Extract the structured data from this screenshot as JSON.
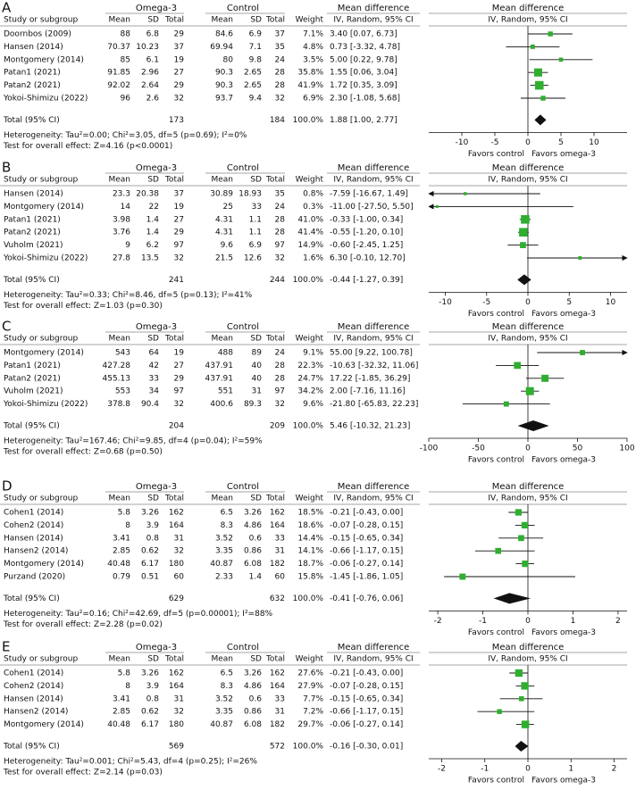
{
  "chart_data": [
    {
      "type": "forest",
      "label": "A",
      "groups": [
        "Omega-3",
        "Control",
        "Mean difference",
        "Mean difference"
      ],
      "columns": [
        "Study or subgroup",
        "Mean",
        "SD",
        "Total",
        "Mean",
        "SD",
        "Total",
        "Weight",
        "IV, Random, 95% CI",
        "IV, Random, 95% CI"
      ],
      "rows": [
        {
          "study": "Doornbos (2009)",
          "omega3": [
            88,
            6.8,
            29
          ],
          "control": [
            84.6,
            6.9,
            37
          ],
          "weight": 7.1,
          "weight_label": "7.1%",
          "md": 3.4,
          "ci": [
            0.07,
            6.73
          ],
          "md_label": "3.40 [0.07, 6.73]"
        },
        {
          "study": "Hansen (2014)",
          "omega3": [
            70.37,
            10.23,
            37
          ],
          "control": [
            69.94,
            7.1,
            35
          ],
          "weight": 4.8,
          "weight_label": "4.8%",
          "md": 0.73,
          "ci": [
            -3.32,
            4.78
          ],
          "md_label": "0.73 [-3.32, 4.78]"
        },
        {
          "study": "Montgomery (2014)",
          "omega3": [
            85,
            6.1,
            19
          ],
          "control": [
            80,
            9.8,
            24
          ],
          "weight": 3.5,
          "weight_label": "3.5%",
          "md": 5.0,
          "ci": [
            0.22,
            9.78
          ],
          "md_label": "5.00 [0.22, 9.78]"
        },
        {
          "study": "Patan1 (2021)",
          "omega3": [
            91.85,
            2.96,
            27
          ],
          "control": [
            90.3,
            2.65,
            28
          ],
          "weight": 35.8,
          "weight_label": "35.8%",
          "md": 1.55,
          "ci": [
            0.06,
            3.04
          ],
          "md_label": "1.55 [0.06, 3.04]"
        },
        {
          "study": "Patan2 (2021)",
          "omega3": [
            92.02,
            2.64,
            29
          ],
          "control": [
            90.3,
            2.65,
            28
          ],
          "weight": 41.9,
          "weight_label": "41.9%",
          "md": 1.72,
          "ci": [
            0.35,
            3.09
          ],
          "md_label": "1.72 [0.35, 3.09]"
        },
        {
          "study": "Yokoi-Shimizu (2022)",
          "omega3": [
            96,
            2.6,
            32
          ],
          "control": [
            93.7,
            9.4,
            32
          ],
          "weight": 6.9,
          "weight_label": "6.9%",
          "md": 2.3,
          "ci": [
            -1.08,
            5.68
          ],
          "md_label": "2.30 [-1.08, 5.68]"
        }
      ],
      "total": {
        "label": "Total (95% CI)",
        "omega3_total": 173,
        "control_total": 184,
        "weight_label": "100.0%",
        "md": 1.88,
        "ci": [
          1.0,
          2.77
        ],
        "md_label": "1.88 [1.00, 2.77]"
      },
      "heterogeneity": "Heterogeneity: Tau²=0.00; Chi²=3.05, df=5 (p=0.69); I²=0%",
      "overall_test": "Test for overall effect: Z=4.16 (p<0.0001)",
      "xlim": [
        -15,
        15
      ],
      "xticks": [
        -10,
        -5,
        0,
        5,
        10
      ],
      "favors": [
        "Favors control",
        "Favors omega-3"
      ],
      "color": "#2fae2f"
    },
    {
      "type": "forest",
      "label": "B",
      "groups": [
        "Omega-3",
        "Control",
        "Mean difference",
        "Mean difference"
      ],
      "columns": [
        "Study or subgroup",
        "Mean",
        "SD",
        "Total",
        "Mean",
        "SD",
        "Total",
        "Weight",
        "IV, Random, 95% CI",
        "IV, Random, 95% CI"
      ],
      "rows": [
        {
          "study": "Hansen (2014)",
          "omega3": [
            23.3,
            20.38,
            37
          ],
          "control": [
            30.89,
            18.93,
            35
          ],
          "weight": 0.8,
          "weight_label": "0.8%",
          "md": -7.59,
          "ci": [
            -16.67,
            1.49
          ],
          "md_label": "-7.59 [-16.67, 1.49]"
        },
        {
          "study": "Montgomery (2014)",
          "omega3": [
            14,
            22,
            19
          ],
          "control": [
            25,
            33,
            24
          ],
          "weight": 0.3,
          "weight_label": "0.3%",
          "md": -11.0,
          "ci": [
            -27.5,
            5.5
          ],
          "md_label": "-11.00 [-27.50, 5.50]"
        },
        {
          "study": "Patan1 (2021)",
          "omega3": [
            3.98,
            1.4,
            27
          ],
          "control": [
            4.31,
            1.1,
            28
          ],
          "weight": 41.0,
          "weight_label": "41.0%",
          "md": -0.33,
          "ci": [
            -1.0,
            0.34
          ],
          "md_label": "-0.33 [-1.00, 0.34]"
        },
        {
          "study": "Patan2 (2021)",
          "omega3": [
            3.76,
            1.4,
            29
          ],
          "control": [
            4.31,
            1.1,
            28
          ],
          "weight": 41.4,
          "weight_label": "41.4%",
          "md": -0.55,
          "ci": [
            -1.2,
            0.1
          ],
          "md_label": "-0.55 [-1.20, 0.10]"
        },
        {
          "study": "Vuholm (2021)",
          "omega3": [
            9,
            6.2,
            97
          ],
          "control": [
            9.6,
            6.9,
            97
          ],
          "weight": 14.9,
          "weight_label": "14.9%",
          "md": -0.6,
          "ci": [
            -2.45,
            1.25
          ],
          "md_label": "-0.60 [-2.45, 1.25]"
        },
        {
          "study": "Yokoi-Shimizu (2022)",
          "omega3": [
            27.8,
            13.5,
            32
          ],
          "control": [
            21.5,
            12.6,
            32
          ],
          "weight": 1.6,
          "weight_label": "1.6%",
          "md": 6.3,
          "ci": [
            -0.1,
            12.7
          ],
          "md_label": "6.30 [-0.10, 12.70]"
        }
      ],
      "total": {
        "label": "Total (95% CI)",
        "omega3_total": 241,
        "control_total": 244,
        "weight_label": "100.0%",
        "md": -0.44,
        "ci": [
          -1.27,
          0.39
        ],
        "md_label": "-0.44 [-1.27, 0.39]"
      },
      "heterogeneity": "Heterogeneity: Tau²=0.33; Chi²=8.46, df=5 (p=0.13); I²=41%",
      "overall_test": "Test for overall effect: Z=1.03 (p=0.30)",
      "xlim": [
        -12,
        12
      ],
      "xticks": [
        -10,
        -5,
        0,
        5,
        10
      ],
      "favors": [
        "Favors control",
        "Favors omega-3"
      ],
      "color": "#2fae2f"
    },
    {
      "type": "forest",
      "label": "C",
      "groups": [
        "Omega-3",
        "Control",
        "Mean difference",
        "Mean difference"
      ],
      "columns": [
        "Study or subgroup",
        "Mean",
        "SD",
        "Total",
        "Mean",
        "SD",
        "Total",
        "Weight",
        "IV, Random, 95% CI",
        "IV, Random, 95% CI"
      ],
      "rows": [
        {
          "study": "Montgomery (2014)",
          "omega3": [
            543,
            64,
            19
          ],
          "control": [
            488,
            89,
            24
          ],
          "weight": 9.1,
          "weight_label": "9.1%",
          "md": 55.0,
          "ci": [
            9.22,
            100.78
          ],
          "md_label": "55.00 [9.22, 100.78]"
        },
        {
          "study": "Patan1 (2021)",
          "omega3": [
            427.28,
            42,
            27
          ],
          "control": [
            437.91,
            40,
            28
          ],
          "weight": 22.3,
          "weight_label": "22.3%",
          "md": -10.63,
          "ci": [
            -32.32,
            11.06
          ],
          "md_label": "-10.63 [-32.32, 11.06]"
        },
        {
          "study": "Patan2 (2021)",
          "omega3": [
            455.13,
            33,
            29
          ],
          "control": [
            437.91,
            40,
            28
          ],
          "weight": 24.7,
          "weight_label": "24.7%",
          "md": 17.22,
          "ci": [
            -1.85,
            36.29
          ],
          "md_label": "17.22 [-1.85, 36.29]"
        },
        {
          "study": "Vuholm (2021)",
          "omega3": [
            553,
            34,
            97
          ],
          "control": [
            551,
            31,
            97
          ],
          "weight": 34.2,
          "weight_label": "34.2%",
          "md": 2.0,
          "ci": [
            -7.16,
            11.16
          ],
          "md_label": "2.00 [-7.16, 11.16]"
        },
        {
          "study": "Yokoi-Shimizu (2022)",
          "omega3": [
            378.8,
            90.4,
            32
          ],
          "control": [
            400.6,
            89.3,
            32
          ],
          "weight": 9.6,
          "weight_label": "9.6%",
          "md": -21.8,
          "ci": [
            -65.83,
            22.23
          ],
          "md_label": "-21.80 [-65.83, 22.23]"
        }
      ],
      "total": {
        "label": "Total (95% CI)",
        "omega3_total": 204,
        "control_total": 209,
        "weight_label": "100.0%",
        "md": 5.46,
        "ci": [
          -10.32,
          21.23
        ],
        "md_label": "5.46 [-10.32, 21.23]"
      },
      "heterogeneity": "Heterogeneity: Tau²=167.46; Chi²=9.85, df=4 (p=0.04); I²=59%",
      "overall_test": "Test for overall effect: Z=0.68 (p=0.50)",
      "xlim": [
        -100,
        100
      ],
      "xticks": [
        -100,
        -50,
        0,
        50,
        100
      ],
      "favors": [
        "Favors control",
        "Favors omega-3"
      ],
      "color": "#2fae2f"
    },
    {
      "type": "forest",
      "label": "D",
      "groups": [
        "Omega-3",
        "Control",
        "Mean difference",
        "Mean difference"
      ],
      "columns": [
        "Study or subgroup",
        "Mean",
        "SD",
        "Total",
        "Mean",
        "SD",
        "Total",
        "Weight",
        "IV, Random, 95% CI",
        "IV, Random, 95% CI"
      ],
      "rows": [
        {
          "study": "Cohen1 (2014)",
          "omega3": [
            5.8,
            3.26,
            162
          ],
          "control": [
            6.5,
            3.26,
            162
          ],
          "weight": 18.5,
          "weight_label": "18.5%",
          "md": -0.21,
          "ci": [
            -0.43,
            0.0
          ],
          "md_label": "-0.21 [-0.43, 0.00]"
        },
        {
          "study": "Cohen2 (2014)",
          "omega3": [
            8,
            3.9,
            164
          ],
          "control": [
            8.3,
            4.86,
            164
          ],
          "weight": 18.6,
          "weight_label": "18.6%",
          "md": -0.07,
          "ci": [
            -0.28,
            0.15
          ],
          "md_label": "-0.07 [-0.28, 0.15]"
        },
        {
          "study": "Hansen (2014)",
          "omega3": [
            3.41,
            0.8,
            31
          ],
          "control": [
            3.52,
            0.6,
            33
          ],
          "weight": 14.4,
          "weight_label": "14.4%",
          "md": -0.15,
          "ci": [
            -0.65,
            0.34
          ],
          "md_label": "-0.15 [-0.65, 0.34]"
        },
        {
          "study": "Hansen2 (2014)",
          "omega3": [
            2.85,
            0.62,
            32
          ],
          "control": [
            3.35,
            0.86,
            31
          ],
          "weight": 14.1,
          "weight_label": "14.1%",
          "md": -0.66,
          "ci": [
            -1.17,
            0.15
          ],
          "md_label": "-0.66 [-1.17, 0.15]"
        },
        {
          "study": "Montgomery (2014)",
          "omega3": [
            40.48,
            6.17,
            180
          ],
          "control": [
            40.87,
            6.08,
            182
          ],
          "weight": 18.7,
          "weight_label": "18.7%",
          "md": -0.06,
          "ci": [
            -0.27,
            0.14
          ],
          "md_label": "-0.06 [-0.27, 0.14]"
        },
        {
          "study": "Purzand (2020)",
          "omega3": [
            0.79,
            0.51,
            60
          ],
          "control": [
            2.33,
            1.4,
            60
          ],
          "weight": 15.8,
          "weight_label": "15.8%",
          "md": -1.45,
          "ci": [
            -1.86,
            1.05
          ],
          "md_label": "-1.45 [-1.86, 1.05]"
        }
      ],
      "total": {
        "label": "Total (95% CI)",
        "omega3_total": 629,
        "control_total": 632,
        "weight_label": "100.0%",
        "md": -0.41,
        "ci": [
          -0.76,
          0.06
        ],
        "md_label": "-0.41 [-0.76, 0.06]"
      },
      "heterogeneity": "Heterogeneity: Tau²=0.16; Chi²=42.69, df=5 (p=0.00001); I²=88%",
      "overall_test": "Test for overall effect: Z=2.28 (p=0.02)",
      "xlim": [
        -2.2,
        2.2
      ],
      "xticks": [
        -2,
        -1,
        0,
        1,
        2
      ],
      "favors": [
        "Favors control",
        "Favors omega-3"
      ],
      "color": "#2fae2f"
    },
    {
      "type": "forest",
      "label": "E",
      "groups": [
        "Omega-3",
        "Control",
        "Mean difference",
        "Mean difference"
      ],
      "columns": [
        "Study or subgroup",
        "Mean",
        "SD",
        "Total",
        "Mean",
        "SD",
        "Total",
        "Weight",
        "IV, Random, 95% CI",
        "IV, Random, 95% CI"
      ],
      "rows": [
        {
          "study": "Cohen1 (2014)",
          "omega3": [
            5.8,
            3.26,
            162
          ],
          "control": [
            6.5,
            3.26,
            162
          ],
          "weight": 27.6,
          "weight_label": "27.6%",
          "md": -0.21,
          "ci": [
            -0.43,
            0.0
          ],
          "md_label": "-0.21 [-0.43, 0.00]"
        },
        {
          "study": "Cohen2 (2014)",
          "omega3": [
            8,
            3.9,
            164
          ],
          "control": [
            8.3,
            4.86,
            164
          ],
          "weight": 27.9,
          "weight_label": "27.9%",
          "md": -0.07,
          "ci": [
            -0.28,
            0.15
          ],
          "md_label": "-0.07 [-0.28, 0.15]"
        },
        {
          "study": "Hansen (2014)",
          "omega3": [
            3.41,
            0.8,
            31
          ],
          "control": [
            3.52,
            0.6,
            33
          ],
          "weight": 7.7,
          "weight_label": "7.7%",
          "md": -0.15,
          "ci": [
            -0.65,
            0.34
          ],
          "md_label": "-0.15 [-0.65, 0.34]"
        },
        {
          "study": "Hansen2 (2014)",
          "omega3": [
            2.85,
            0.62,
            32
          ],
          "control": [
            3.35,
            0.86,
            31
          ],
          "weight": 7.2,
          "weight_label": "7.2%",
          "md": -0.66,
          "ci": [
            -1.17,
            0.15
          ],
          "md_label": "-0.66 [-1.17, 0.15]"
        },
        {
          "study": "Montgomery (2014)",
          "omega3": [
            40.48,
            6.17,
            180
          ],
          "control": [
            40.87,
            6.08,
            182
          ],
          "weight": 29.7,
          "weight_label": "29.7%",
          "md": -0.06,
          "ci": [
            -0.27,
            0.14
          ],
          "md_label": "-0.06 [-0.27, 0.14]"
        }
      ],
      "total": {
        "label": "Total (95% CI)",
        "omega3_total": 569,
        "control_total": 572,
        "weight_label": "100.0%",
        "md": -0.16,
        "ci": [
          -0.3,
          0.01
        ],
        "md_label": "-0.16 [-0.30, 0.01]"
      },
      "heterogeneity": "Heterogeneity: Tau²=0.001; Chi²=5.43, df=4 (p=0.25); I²=26%",
      "overall_test": "Test for overall effect: Z=2.14 (p=0.03)",
      "xlim": [
        -2.3,
        2.3
      ],
      "xticks": [
        -2,
        -1,
        0,
        1,
        2
      ],
      "favors": [
        "Favors control",
        "Favors omega-3"
      ],
      "color": "#2fae2f"
    }
  ]
}
